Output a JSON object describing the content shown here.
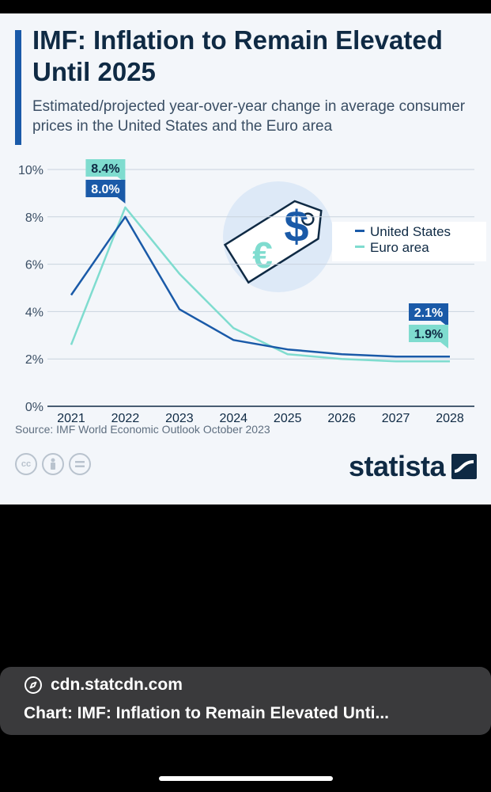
{
  "header": {
    "title": "IMF: Inflation to Remain Elevated Until 2025",
    "subtitle": "Estimated/projected year-over-year change in average consumer prices in the United States and the Euro area"
  },
  "chart_data": {
    "type": "line",
    "x": [
      "2021",
      "2022",
      "2023",
      "2024",
      "2025",
      "2026",
      "2027",
      "2028"
    ],
    "series": [
      {
        "name": "United States",
        "color": "#1a5aa8",
        "values": [
          4.7,
          8.0,
          4.1,
          2.8,
          2.4,
          2.2,
          2.1,
          2.1
        ]
      },
      {
        "name": "Euro area",
        "color": "#7fdccf",
        "values": [
          2.6,
          8.4,
          5.6,
          3.3,
          2.2,
          2.0,
          1.9,
          1.9
        ]
      }
    ],
    "ylim": [
      0,
      10
    ],
    "yticks": [
      "0%",
      "2%",
      "4%",
      "6%",
      "8%",
      "10%"
    ],
    "data_labels": [
      {
        "series": "Euro area",
        "x": "2022",
        "text": "8.4%"
      },
      {
        "series": "United States",
        "x": "2022",
        "text": "8.0%"
      },
      {
        "series": "United States",
        "x": "2028",
        "text": "2.1%"
      },
      {
        "series": "Euro area",
        "x": "2028",
        "text": "1.9%"
      }
    ],
    "legend_position": "right",
    "xlabel": "",
    "ylabel": ""
  },
  "footer": {
    "source": "Source: IMF World Economic Outlook October 2023",
    "brand": "statista"
  },
  "browser": {
    "url": "cdn.statcdn.com",
    "page_title": "Chart: IMF: Inflation to Remain Elevated Unti..."
  }
}
